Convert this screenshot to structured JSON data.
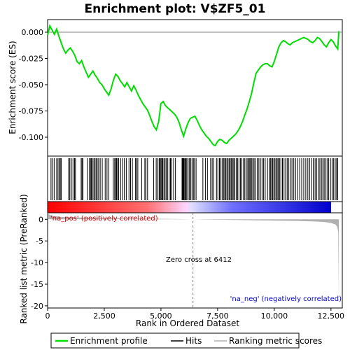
{
  "chart_data": {
    "type": "line",
    "title": "Enrichment plot: V$ZF5_01",
    "xlabel": "Rank in Ordered Dataset",
    "ylabel_top": "Enrichment score (ES)",
    "ylabel_bottom": "Ranked list metric (PreRanked)",
    "xlim": [
      0,
      13000
    ],
    "x_ticks": [
      0,
      2500,
      5000,
      7500,
      10000,
      12500
    ],
    "x_tick_labels": [
      "0",
      "2,500",
      "5,000",
      "7,500",
      "10,000",
      "12,500"
    ],
    "es_ylim": [
      -0.118,
      0.012
    ],
    "es_ticks": [
      0.0,
      -0.025,
      -0.05,
      -0.075,
      -0.1
    ],
    "es_tick_labels": [
      "0.000",
      "-0.025",
      "-0.050",
      "-0.075",
      "-0.100"
    ],
    "metric_ylim": [
      -20.5,
      1.5
    ],
    "metric_ticks": [
      0,
      -5,
      -10,
      -15,
      -20
    ],
    "metric_tick_labels": [
      "0",
      "-5",
      "-10",
      "-15",
      "-20"
    ],
    "es_series": {
      "name": "Enrichment profile",
      "x": [
        0,
        100,
        200,
        300,
        400,
        500,
        600,
        700,
        800,
        900,
        1000,
        1100,
        1200,
        1300,
        1400,
        1500,
        1600,
        1700,
        1800,
        1900,
        2000,
        2100,
        2200,
        2300,
        2400,
        2500,
        2600,
        2700,
        2800,
        2900,
        3000,
        3100,
        3200,
        3300,
        3400,
        3500,
        3600,
        3700,
        3800,
        3900,
        4000,
        4100,
        4200,
        4300,
        4400,
        4500,
        4600,
        4700,
        4800,
        4900,
        5000,
        5100,
        5200,
        5300,
        5400,
        5500,
        5600,
        5700,
        5800,
        5900,
        6000,
        6100,
        6200,
        6300,
        6400,
        6500,
        6600,
        6700,
        6800,
        6900,
        7000,
        7100,
        7200,
        7300,
        7400,
        7500,
        7600,
        7700,
        7800,
        7900,
        8000,
        8100,
        8200,
        8300,
        8400,
        8500,
        8600,
        8700,
        8800,
        8900,
        9000,
        9100,
        9200,
        9300,
        9400,
        9500,
        9600,
        9700,
        9800,
        9900,
        10000,
        10100,
        10200,
        10300,
        10400,
        10500,
        10600,
        10700,
        10800,
        10900,
        11000,
        11100,
        11200,
        11300,
        11400,
        11500,
        11600,
        11700,
        11800,
        11900,
        12000,
        12100,
        12200,
        12300,
        12400,
        12500,
        12600,
        12700,
        12800,
        12850
      ],
      "y": [
        -0.003,
        0.006,
        0.002,
        -0.002,
        0.003,
        -0.004,
        -0.01,
        -0.016,
        -0.02,
        -0.017,
        -0.015,
        -0.018,
        -0.022,
        -0.028,
        -0.03,
        -0.027,
        -0.033,
        -0.038,
        -0.043,
        -0.04,
        -0.037,
        -0.041,
        -0.044,
        -0.048,
        -0.05,
        -0.054,
        -0.057,
        -0.06,
        -0.054,
        -0.046,
        -0.04,
        -0.042,
        -0.046,
        -0.049,
        -0.052,
        -0.048,
        -0.052,
        -0.056,
        -0.051,
        -0.055,
        -0.06,
        -0.064,
        -0.068,
        -0.071,
        -0.074,
        -0.079,
        -0.085,
        -0.09,
        -0.093,
        -0.085,
        -0.068,
        -0.066,
        -0.07,
        -0.072,
        -0.074,
        -0.076,
        -0.078,
        -0.081,
        -0.086,
        -0.093,
        -0.099,
        -0.092,
        -0.086,
        -0.082,
        -0.081,
        -0.08,
        -0.084,
        -0.089,
        -0.093,
        -0.096,
        -0.099,
        -0.101,
        -0.104,
        -0.107,
        -0.108,
        -0.104,
        -0.102,
        -0.103,
        -0.105,
        -0.106,
        -0.103,
        -0.101,
        -0.099,
        -0.097,
        -0.094,
        -0.09,
        -0.085,
        -0.079,
        -0.073,
        -0.066,
        -0.058,
        -0.048,
        -0.039,
        -0.036,
        -0.033,
        -0.031,
        -0.03,
        -0.03,
        -0.032,
        -0.033,
        -0.028,
        -0.021,
        -0.014,
        -0.01,
        -0.008,
        -0.009,
        -0.011,
        -0.012,
        -0.01,
        -0.009,
        -0.008,
        -0.007,
        -0.006,
        -0.005,
        -0.006,
        -0.007,
        -0.009,
        -0.01,
        -0.008,
        -0.005,
        -0.006,
        -0.009,
        -0.012,
        -0.014,
        -0.01,
        -0.007,
        -0.009,
        -0.013,
        -0.016,
        0.001
      ]
    },
    "metric_series": {
      "name": "Ranking metric scores",
      "x": [
        0,
        100,
        300,
        600,
        1000,
        2000,
        3000,
        4000,
        5000,
        6000,
        6412,
        7000,
        8000,
        9000,
        10000,
        11000,
        11800,
        12200,
        12500,
        12700,
        12780,
        12820,
        12850
      ],
      "y": [
        1.6,
        1.0,
        0.7,
        0.55,
        0.45,
        0.32,
        0.25,
        0.18,
        0.11,
        0.05,
        0.0,
        -0.06,
        -0.13,
        -0.21,
        -0.29,
        -0.38,
        -0.5,
        -0.62,
        -0.85,
        -1.2,
        -1.8,
        -3.0,
        -19.5
      ]
    },
    "hits": [
      150,
      210,
      290,
      400,
      460,
      520,
      560,
      600,
      930,
      980,
      1050,
      1120,
      1190,
      1230,
      1480,
      1520,
      1560,
      1760,
      1850,
      1890,
      1930,
      1980,
      2040,
      2090,
      2140,
      2190,
      2250,
      2320,
      2410,
      2540,
      2620,
      2700,
      2900,
      2960,
      3010,
      3040,
      3090,
      3130,
      3220,
      3300,
      3380,
      3470,
      3590,
      3660,
      3740,
      3880,
      3920,
      3980,
      4150,
      4290,
      4340,
      4410,
      4680,
      4790,
      4860,
      4920,
      4960,
      5000,
      5040,
      5080,
      5130,
      5180,
      5230,
      5290,
      5360,
      5420,
      5480,
      5560,
      5640,
      5930,
      5960,
      5990,
      6020,
      6060,
      6100,
      6140,
      6200,
      6260,
      6310,
      6370,
      6430,
      6480,
      6550,
      6850,
      6960,
      7050,
      7190,
      7260,
      7330,
      7450,
      7510,
      7580,
      7640,
      7700,
      7760,
      7810,
      7860,
      7910,
      7960,
      8010,
      8060,
      8110,
      8160,
      8210,
      8260,
      8320,
      8380,
      8440,
      8510,
      8570,
      8640,
      8700,
      8770,
      8830,
      8880,
      8920,
      8960,
      9010,
      9060,
      9110,
      9180,
      9250,
      9320,
      9390,
      9460,
      9530,
      9600,
      9700,
      9780,
      9830,
      9880,
      9930,
      9980,
      10030,
      10080,
      10130,
      10180,
      10230,
      10290,
      10360,
      10430,
      10500,
      10570,
      10640,
      10710,
      10780,
      10860,
      10940,
      11030,
      11120,
      11210,
      11300,
      11390,
      11480,
      11560,
      11640,
      11720,
      11800,
      11870,
      11940,
      12010,
      12080,
      12140,
      12200,
      12260,
      12330,
      12400,
      12480,
      12550,
      12620,
      12690,
      12750,
      12800
    ],
    "zero_cross_label": "Zero cross at 6412",
    "zero_cross_x": 6412,
    "pos_label": "'na_pos' (positively correlated)",
    "neg_label": "'na_neg' (negatively correlated)",
    "legend": [
      "Enrichment profile",
      "Hits",
      "Ranking metric scores"
    ],
    "colors": {
      "es_line": "#00dd00",
      "hits": "#000000",
      "metric_fill": "#b0b0b0",
      "pos_text": "#cc0000",
      "neg_text": "#0000cc",
      "bar_red": "#ff0000",
      "bar_blue": "#0000ff",
      "gridline": "#808080"
    }
  }
}
